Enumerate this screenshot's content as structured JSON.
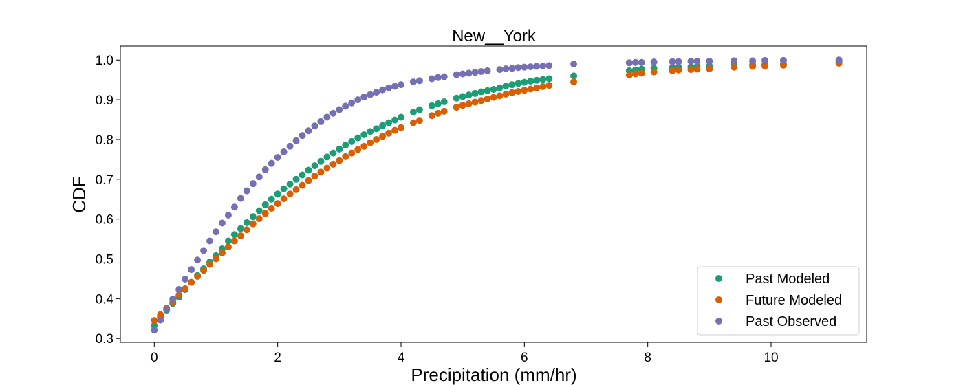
{
  "chart_data": {
    "type": "scatter",
    "title": "New__York",
    "xlabel": "Precipitation (mm/hr)",
    "ylabel": "CDF",
    "xlim": [
      -0.55,
      11.55
    ],
    "ylim": [
      0.29,
      1.035
    ],
    "xticks": [
      0,
      2,
      4,
      6,
      8,
      10
    ],
    "yticks": [
      0.3,
      0.4,
      0.5,
      0.6,
      0.7,
      0.8,
      0.9,
      1.0
    ],
    "legend_position": "lower-right",
    "grid": false,
    "series": [
      {
        "name": "Past Modeled",
        "color": "#1b9e77",
        "points": [
          [
            0.0,
            0.332
          ],
          [
            0.1,
            0.354
          ],
          [
            0.2,
            0.371
          ],
          [
            0.3,
            0.388
          ],
          [
            0.4,
            0.404
          ],
          [
            0.5,
            0.423
          ],
          [
            0.6,
            0.441
          ],
          [
            0.7,
            0.458
          ],
          [
            0.8,
            0.475
          ],
          [
            0.9,
            0.492
          ],
          [
            1.0,
            0.508
          ],
          [
            1.1,
            0.525
          ],
          [
            1.2,
            0.545
          ],
          [
            1.3,
            0.561
          ],
          [
            1.4,
            0.576
          ],
          [
            1.5,
            0.591
          ],
          [
            1.6,
            0.606
          ],
          [
            1.7,
            0.621
          ],
          [
            1.8,
            0.636
          ],
          [
            1.9,
            0.65
          ],
          [
            2.0,
            0.663
          ],
          [
            2.1,
            0.676
          ],
          [
            2.2,
            0.688
          ],
          [
            2.3,
            0.7
          ],
          [
            2.4,
            0.711
          ],
          [
            2.5,
            0.723
          ],
          [
            2.6,
            0.734
          ],
          [
            2.7,
            0.745
          ],
          [
            2.8,
            0.756
          ],
          [
            2.9,
            0.766
          ],
          [
            3.0,
            0.776
          ],
          [
            3.1,
            0.786
          ],
          [
            3.2,
            0.795
          ],
          [
            3.3,
            0.804
          ],
          [
            3.4,
            0.812
          ],
          [
            3.5,
            0.82
          ],
          [
            3.6,
            0.827
          ],
          [
            3.7,
            0.835
          ],
          [
            3.8,
            0.842
          ],
          [
            3.9,
            0.849
          ],
          [
            4.0,
            0.856
          ],
          [
            4.2,
            0.869
          ],
          [
            4.3,
            0.875
          ],
          [
            4.5,
            0.885
          ],
          [
            4.6,
            0.89
          ],
          [
            4.7,
            0.895
          ],
          [
            4.9,
            0.904
          ],
          [
            5.0,
            0.908
          ],
          [
            5.1,
            0.912
          ],
          [
            5.2,
            0.916
          ],
          [
            5.3,
            0.92
          ],
          [
            5.4,
            0.923
          ],
          [
            5.5,
            0.926
          ],
          [
            5.6,
            0.93
          ],
          [
            5.7,
            0.935
          ],
          [
            5.8,
            0.938
          ],
          [
            5.9,
            0.941
          ],
          [
            6.0,
            0.944
          ],
          [
            6.1,
            0.947
          ],
          [
            6.2,
            0.949
          ],
          [
            6.3,
            0.951
          ],
          [
            6.4,
            0.953
          ],
          [
            6.8,
            0.96
          ],
          [
            7.7,
            0.973
          ],
          [
            7.8,
            0.975
          ],
          [
            7.9,
            0.977
          ],
          [
            8.1,
            0.979
          ],
          [
            8.4,
            0.981
          ],
          [
            8.5,
            0.982
          ],
          [
            8.7,
            0.983
          ],
          [
            8.8,
            0.984
          ],
          [
            9.0,
            0.985
          ],
          [
            9.4,
            0.987
          ],
          [
            9.7,
            0.988
          ],
          [
            9.9,
            0.989
          ],
          [
            10.2,
            0.99
          ],
          [
            11.1,
            0.995
          ]
        ]
      },
      {
        "name": "Future Modeled",
        "color": "#d95f02",
        "points": [
          [
            0.0,
            0.345
          ],
          [
            0.1,
            0.36
          ],
          [
            0.2,
            0.376
          ],
          [
            0.3,
            0.392
          ],
          [
            0.4,
            0.409
          ],
          [
            0.5,
            0.425
          ],
          [
            0.6,
            0.441
          ],
          [
            0.7,
            0.456
          ],
          [
            0.8,
            0.471
          ],
          [
            0.9,
            0.486
          ],
          [
            1.0,
            0.5
          ],
          [
            1.1,
            0.515
          ],
          [
            1.2,
            0.53
          ],
          [
            1.3,
            0.545
          ],
          [
            1.4,
            0.558
          ],
          [
            1.5,
            0.573
          ],
          [
            1.6,
            0.588
          ],
          [
            1.7,
            0.601
          ],
          [
            1.8,
            0.614
          ],
          [
            1.9,
            0.627
          ],
          [
            2.0,
            0.639
          ],
          [
            2.1,
            0.651
          ],
          [
            2.2,
            0.663
          ],
          [
            2.3,
            0.674
          ],
          [
            2.4,
            0.685
          ],
          [
            2.5,
            0.697
          ],
          [
            2.6,
            0.708
          ],
          [
            2.7,
            0.718
          ],
          [
            2.8,
            0.728
          ],
          [
            2.9,
            0.738
          ],
          [
            3.0,
            0.747
          ],
          [
            3.1,
            0.757
          ],
          [
            3.2,
            0.766
          ],
          [
            3.3,
            0.775
          ],
          [
            3.4,
            0.783
          ],
          [
            3.5,
            0.792
          ],
          [
            3.6,
            0.8
          ],
          [
            3.7,
            0.808
          ],
          [
            3.8,
            0.816
          ],
          [
            3.9,
            0.823
          ],
          [
            4.0,
            0.83
          ],
          [
            4.2,
            0.842
          ],
          [
            4.3,
            0.848
          ],
          [
            4.5,
            0.86
          ],
          [
            4.6,
            0.866
          ],
          [
            4.7,
            0.871
          ],
          [
            4.9,
            0.881
          ],
          [
            5.0,
            0.886
          ],
          [
            5.1,
            0.89
          ],
          [
            5.2,
            0.894
          ],
          [
            5.3,
            0.898
          ],
          [
            5.4,
            0.902
          ],
          [
            5.5,
            0.906
          ],
          [
            5.6,
            0.91
          ],
          [
            5.7,
            0.914
          ],
          [
            5.8,
            0.918
          ],
          [
            5.9,
            0.921
          ],
          [
            6.0,
            0.924
          ],
          [
            6.1,
            0.927
          ],
          [
            6.2,
            0.93
          ],
          [
            6.3,
            0.933
          ],
          [
            6.4,
            0.936
          ],
          [
            6.8,
            0.945
          ],
          [
            7.7,
            0.962
          ],
          [
            7.8,
            0.965
          ],
          [
            7.9,
            0.967
          ],
          [
            8.1,
            0.97
          ],
          [
            8.4,
            0.973
          ],
          [
            8.5,
            0.975
          ],
          [
            8.7,
            0.976
          ],
          [
            8.8,
            0.977
          ],
          [
            9.0,
            0.978
          ],
          [
            9.4,
            0.982
          ],
          [
            9.7,
            0.984
          ],
          [
            9.9,
            0.985
          ],
          [
            10.2,
            0.987
          ],
          [
            11.1,
            0.992
          ]
        ]
      },
      {
        "name": "Past Observed",
        "color": "#7570b3",
        "points": [
          [
            0.0,
            0.321
          ],
          [
            0.1,
            0.346
          ],
          [
            0.2,
            0.373
          ],
          [
            0.3,
            0.399
          ],
          [
            0.4,
            0.423
          ],
          [
            0.5,
            0.449
          ],
          [
            0.6,
            0.473
          ],
          [
            0.7,
            0.497
          ],
          [
            0.8,
            0.521
          ],
          [
            0.9,
            0.545
          ],
          [
            1.0,
            0.568
          ],
          [
            1.1,
            0.59
          ],
          [
            1.2,
            0.61
          ],
          [
            1.3,
            0.63
          ],
          [
            1.4,
            0.652
          ],
          [
            1.5,
            0.671
          ],
          [
            1.6,
            0.689
          ],
          [
            1.7,
            0.706
          ],
          [
            1.8,
            0.724
          ],
          [
            1.9,
            0.74
          ],
          [
            2.0,
            0.755
          ],
          [
            2.1,
            0.769
          ],
          [
            2.2,
            0.783
          ],
          [
            2.3,
            0.797
          ],
          [
            2.4,
            0.81
          ],
          [
            2.5,
            0.822
          ],
          [
            2.6,
            0.834
          ],
          [
            2.7,
            0.845
          ],
          [
            2.8,
            0.856
          ],
          [
            2.9,
            0.866
          ],
          [
            3.0,
            0.875
          ],
          [
            3.1,
            0.884
          ],
          [
            3.2,
            0.892
          ],
          [
            3.3,
            0.9
          ],
          [
            3.4,
            0.907
          ],
          [
            3.5,
            0.913
          ],
          [
            3.6,
            0.919
          ],
          [
            3.7,
            0.925
          ],
          [
            3.8,
            0.93
          ],
          [
            3.9,
            0.934
          ],
          [
            4.0,
            0.938
          ],
          [
            4.2,
            0.945
          ],
          [
            4.3,
            0.948
          ],
          [
            4.5,
            0.953
          ],
          [
            4.6,
            0.956
          ],
          [
            4.7,
            0.958
          ],
          [
            4.9,
            0.963
          ],
          [
            5.0,
            0.965
          ],
          [
            5.1,
            0.967
          ],
          [
            5.2,
            0.969
          ],
          [
            5.3,
            0.971
          ],
          [
            5.4,
            0.973
          ],
          [
            5.6,
            0.976
          ],
          [
            5.7,
            0.978
          ],
          [
            5.8,
            0.979
          ],
          [
            5.9,
            0.981
          ],
          [
            6.0,
            0.982
          ],
          [
            6.1,
            0.983
          ],
          [
            6.2,
            0.984
          ],
          [
            6.3,
            0.985
          ],
          [
            6.4,
            0.986
          ],
          [
            6.8,
            0.99
          ],
          [
            7.7,
            0.993
          ],
          [
            7.8,
            0.994
          ],
          [
            7.9,
            0.994
          ],
          [
            8.1,
            0.995
          ],
          [
            8.4,
            0.996
          ],
          [
            8.5,
            0.996
          ],
          [
            8.7,
            0.997
          ],
          [
            8.8,
            0.997
          ],
          [
            9.0,
            0.997
          ],
          [
            9.4,
            0.998
          ],
          [
            9.7,
            0.998
          ],
          [
            9.9,
            0.999
          ],
          [
            10.2,
            0.999
          ],
          [
            11.1,
            1.0
          ]
        ]
      }
    ]
  }
}
